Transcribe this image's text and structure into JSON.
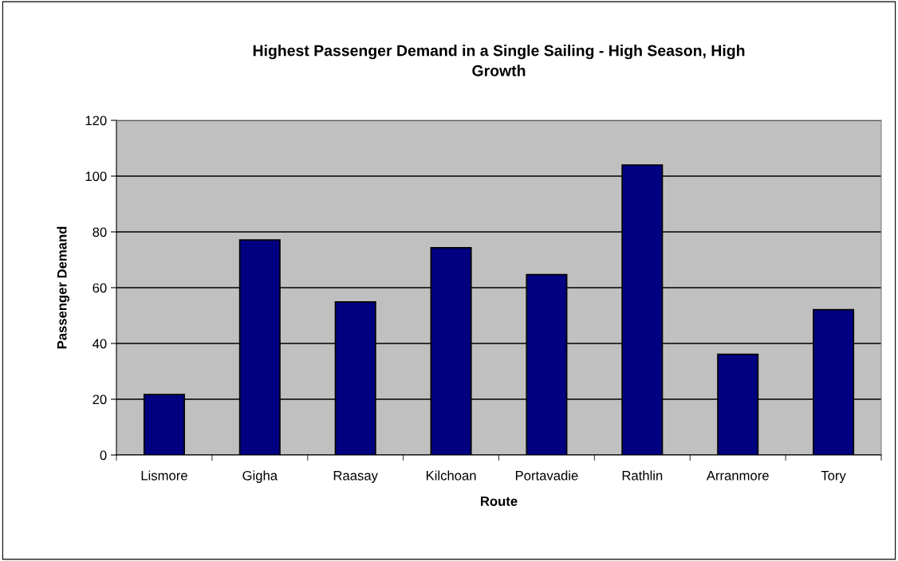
{
  "chart_data": {
    "type": "bar",
    "title": "Highest Passenger Demand in a Single Sailing - High Season, High\nGrowth",
    "xlabel": "Route",
    "ylabel": "Passenger Demand",
    "categories": [
      "Lismore",
      "Gigha",
      "Raasay",
      "Kilchoan",
      "Portavadie",
      "Rathlin",
      "Arranmore",
      "Tory"
    ],
    "values": [
      21.7,
      77.1,
      54.9,
      74.3,
      64.7,
      104.0,
      36.1,
      52.1
    ],
    "color": "#000080",
    "ylim": [
      0,
      120
    ],
    "yticks": [
      0,
      20,
      40,
      60,
      80,
      100,
      120
    ],
    "grid": "y",
    "legend": false
  }
}
